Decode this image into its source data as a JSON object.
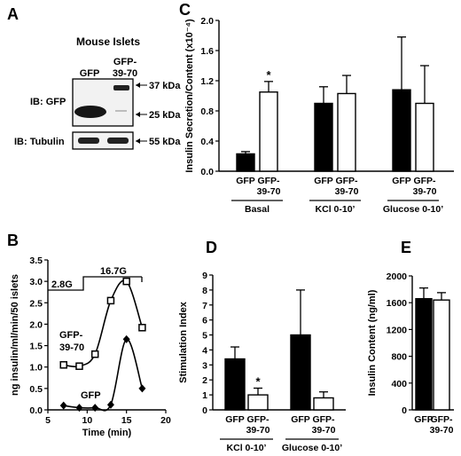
{
  "panels": {
    "A": {
      "label": "A",
      "title": "Mouse Islets",
      "lane1": "GFP",
      "lane2_line1": "GFP-",
      "lane2_line2": "39-70",
      "blot1_label": "IB: GFP",
      "blot2_label": "IB: Tubulin",
      "marker_37": "37 kDa",
      "marker_25": "25 kDa",
      "marker_55": "55 kDa"
    },
    "B": {
      "label": "B",
      "conc_low": "2.8G",
      "conc_high": "16.7G",
      "gfp3970_line1": "GFP-",
      "gfp3970_line2": "39-70",
      "gfp": "GFP"
    },
    "C": {
      "label": "C"
    },
    "D": {
      "label": "D"
    },
    "E": {
      "label": "E"
    }
  },
  "chart_data": [
    {
      "id": "B",
      "type": "line",
      "xlabel": "Time (min)",
      "ylabel": "ng insulin/ml/min/50 islets",
      "xlim": [
        5,
        20
      ],
      "ylim": [
        0,
        3.5
      ],
      "xticks": [
        5,
        10,
        15,
        20
      ],
      "yticks": [
        0.0,
        0.5,
        1.0,
        1.5,
        2.0,
        2.5,
        3.0,
        3.5
      ],
      "ytick_labels": [
        "0.0",
        "0.5",
        "1.0",
        "1.5",
        "2.0",
        "2.5",
        "3.0",
        "3.5"
      ],
      "series": [
        {
          "name": "GFP-39-70",
          "marker": "square-open",
          "x": [
            7,
            9,
            11,
            13,
            15,
            17
          ],
          "y": [
            1.05,
            1.02,
            1.3,
            2.55,
            3.0,
            1.92
          ]
        },
        {
          "name": "GFP",
          "marker": "diamond-filled",
          "x": [
            7,
            9,
            11,
            13,
            15,
            17
          ],
          "y": [
            0.1,
            0.05,
            0.05,
            0.12,
            1.65,
            0.5
          ]
        }
      ],
      "stimulus": [
        {
          "label": "2.8G",
          "from": 5,
          "to": 10,
          "level": "low"
        },
        {
          "label": "16.7G",
          "from": 10,
          "to": 18,
          "level": "high"
        }
      ]
    },
    {
      "id": "C",
      "type": "bar",
      "ylabel": "Insulin Secretion/Content (x10⁻⁴)",
      "ylim": [
        0,
        2.0
      ],
      "yticks": [
        0.0,
        0.4,
        0.8,
        1.2,
        1.6,
        2.0
      ],
      "ytick_labels": [
        "0.0",
        "0.4",
        "0.8",
        "1.2",
        "1.6",
        "2.0"
      ],
      "groups": [
        "Basal",
        "KCl 0-10’",
        "Glucose 0-10’"
      ],
      "series": [
        {
          "name": "GFP",
          "fill": "#000000",
          "values": [
            0.23,
            0.9,
            1.08
          ],
          "errors": [
            0.03,
            0.22,
            0.7
          ]
        },
        {
          "name": "GFP-39-70",
          "fill": "#ffffff",
          "values": [
            1.05,
            1.03,
            0.9
          ],
          "errors": [
            0.14,
            0.24,
            0.5
          ]
        }
      ],
      "bar_labels": [
        {
          "line1": "GFP",
          "line2": ""
        },
        {
          "line1": "GFP-",
          "line2": "39-70"
        }
      ],
      "significance": [
        {
          "group": 0,
          "series": 1,
          "text": "*"
        }
      ]
    },
    {
      "id": "D",
      "type": "bar",
      "ylabel": "Stimulation Index",
      "ylim": [
        0,
        9
      ],
      "yticks": [
        0,
        1,
        2,
        3,
        4,
        5,
        6,
        7,
        8,
        9
      ],
      "ytick_labels": [
        "0",
        "1",
        "2",
        "3",
        "4",
        "5",
        "6",
        "7",
        "8",
        "9"
      ],
      "groups": [
        "KCl 0-10’",
        "Glucose 0-10’"
      ],
      "series": [
        {
          "name": "GFP",
          "fill": "#000000",
          "values": [
            3.4,
            5.0
          ],
          "errors": [
            0.8,
            3.0
          ]
        },
        {
          "name": "GFP-39-70",
          "fill": "#ffffff",
          "values": [
            1.0,
            0.8
          ],
          "errors": [
            0.45,
            0.4
          ]
        }
      ],
      "bar_labels": [
        {
          "line1": "GFP",
          "line2": ""
        },
        {
          "line1": "GFP-",
          "line2": "39-70"
        }
      ],
      "significance": [
        {
          "group": 0,
          "series": 1,
          "text": "*"
        }
      ]
    },
    {
      "id": "E",
      "type": "bar",
      "ylabel": "Insulin Content (ng/ml)",
      "ylim": [
        0,
        2000
      ],
      "yticks": [
        0,
        400,
        800,
        1200,
        1600,
        2000
      ],
      "ytick_labels": [
        "0",
        "400",
        "800",
        "1200",
        "1600",
        "2000"
      ],
      "groups": [
        ""
      ],
      "series": [
        {
          "name": "GFP",
          "fill": "#000000",
          "values": [
            1660
          ],
          "errors": [
            160
          ]
        },
        {
          "name": "GFP-39-70",
          "fill": "#ffffff",
          "values": [
            1640
          ],
          "errors": [
            110
          ]
        }
      ],
      "bar_labels": [
        {
          "line1": "GFP",
          "line2": ""
        },
        {
          "line1": "GFP-",
          "line2": "39-70"
        }
      ],
      "significance": []
    }
  ]
}
